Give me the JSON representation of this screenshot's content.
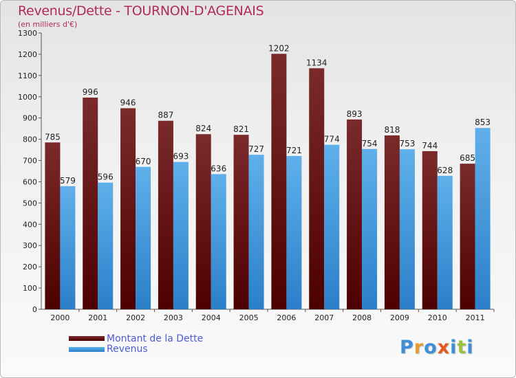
{
  "title": "Revenus/Dette - TOURNON-D'AGENAIS",
  "subtitle": "(en milliers d'€)",
  "colors": {
    "debt_top": "#7a2a2a",
    "debt_bottom": "#4d0000",
    "revenue_top": "#5fb0ea",
    "revenue_bottom": "#2b7fc9",
    "title": "#b22a5a",
    "legend_text": "#4a5bd8"
  },
  "legend": {
    "debt_label": "Montant de la Dette",
    "revenue_label": "Revenus"
  },
  "logo": {
    "text": "Proxiti",
    "letter_colors": [
      "#3d8fd8",
      "#e89a2c",
      "#3d8fd8",
      "#e8581a",
      "#3d8fd8",
      "#9ac23d",
      "#3d8fd8"
    ]
  },
  "chart_data": {
    "type": "bar",
    "categories": [
      "2000",
      "2001",
      "2002",
      "2003",
      "2004",
      "2005",
      "2006",
      "2007",
      "2008",
      "2009",
      "2010",
      "2011"
    ],
    "series": [
      {
        "name": "Montant de la Dette",
        "values": [
          785,
          996,
          946,
          887,
          824,
          821,
          1202,
          1134,
          893,
          818,
          744,
          685
        ]
      },
      {
        "name": "Revenus",
        "values": [
          579,
          596,
          670,
          693,
          636,
          727,
          721,
          774,
          754,
          753,
          628,
          853
        ]
      }
    ],
    "ylim": [
      0,
      1300
    ],
    "yticks": [
      0,
      100,
      200,
      300,
      400,
      500,
      600,
      700,
      800,
      900,
      1000,
      1100,
      1200,
      1300
    ],
    "grid": false,
    "legend_position": "bottom-left"
  }
}
